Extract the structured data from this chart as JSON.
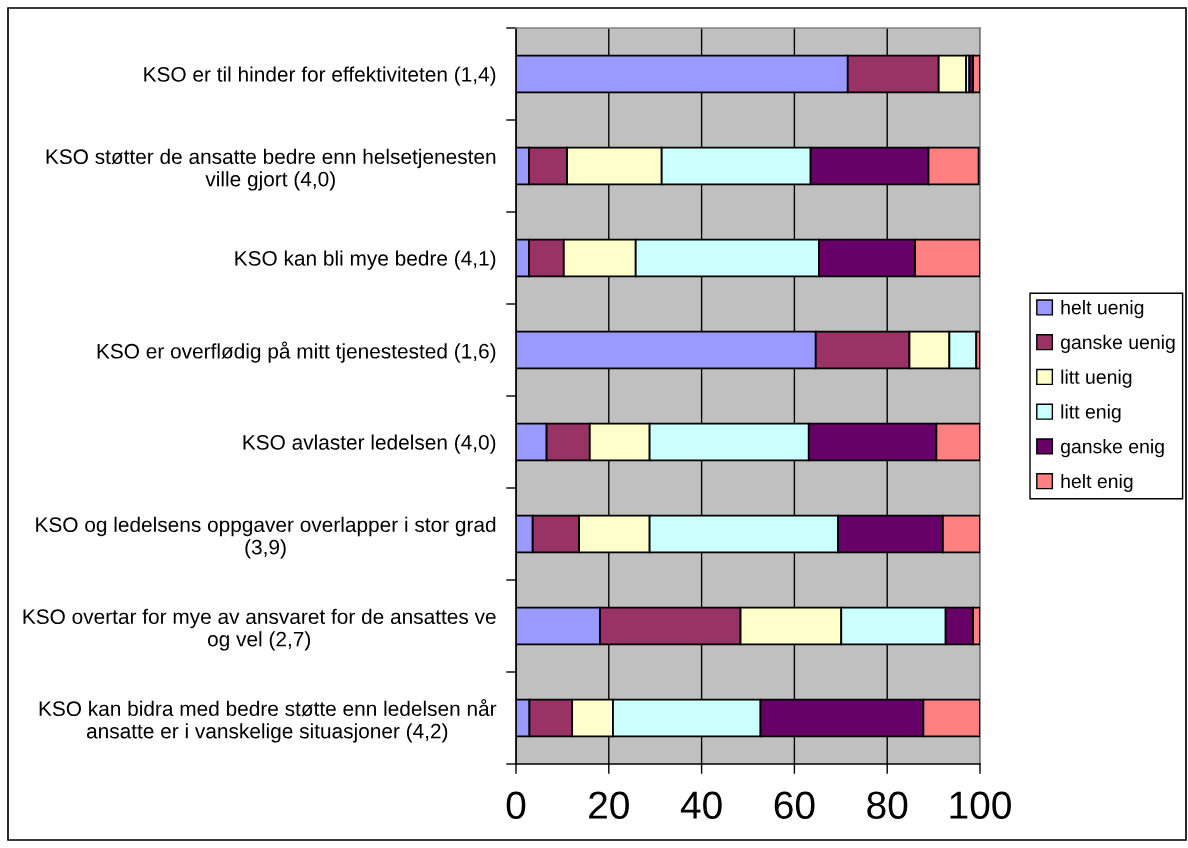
{
  "chart_data": {
    "type": "bar",
    "orientation": "horizontal",
    "stacked": true,
    "categories": [
      "KSO er til hinder for effektiviteten (1,4)",
      "KSO støtter de ansatte bedre enn helsetjenesten\nville gjort (4,0)",
      "KSO kan bli mye bedre (4,1)",
      "KSO er overflødig på mitt tjenestested (1,6)",
      "KSO avlaster ledelsen (4,0)",
      "KSO og ledelsens oppgaver overlapper i stor grad\n(3,9)",
      "KSO overtar for mye av ansvaret for de ansattes ve\nog vel (2,7)",
      "KSO kan bidra med bedre støtte enn ledelsen når\nansatte er i vanskelige situasjoner (4,2)"
    ],
    "series": [
      {
        "name": "helt uenig",
        "color": "#9999ff",
        "values": [
          71.5,
          2.8,
          2.8,
          64.6,
          6.6,
          3.6,
          18.1,
          2.9
        ]
      },
      {
        "name": "ganske uenig",
        "color": "#993366",
        "values": [
          19.6,
          8.2,
          7.5,
          20.2,
          9.3,
          10.0,
          30.3,
          9.2
        ]
      },
      {
        "name": "litt uenig",
        "color": "#ffffcc",
        "values": [
          5.9,
          20.4,
          15.5,
          8.6,
          12.9,
          15.2,
          21.7,
          8.8
        ]
      },
      {
        "name": "litt enig",
        "color": "#ccffff",
        "values": [
          0.7,
          32.1,
          39.5,
          5.8,
          34.3,
          40.6,
          22.5,
          31.8
        ]
      },
      {
        "name": "ganske enig",
        "color": "#660066",
        "values": [
          0.8,
          25.4,
          20.7,
          null,
          27.5,
          22.6,
          5.9,
          35.1
        ]
      },
      {
        "name": "helt enig",
        "color": "#ff8080",
        "values": [
          1.5,
          10.8,
          14.0,
          0.8,
          9.4,
          8.0,
          1.5,
          12.2
        ]
      }
    ],
    "xlim": [
      0,
      100
    ],
    "xticks": [
      0,
      20,
      40,
      60,
      80,
      100
    ],
    "grid": "x",
    "legend": "right"
  }
}
